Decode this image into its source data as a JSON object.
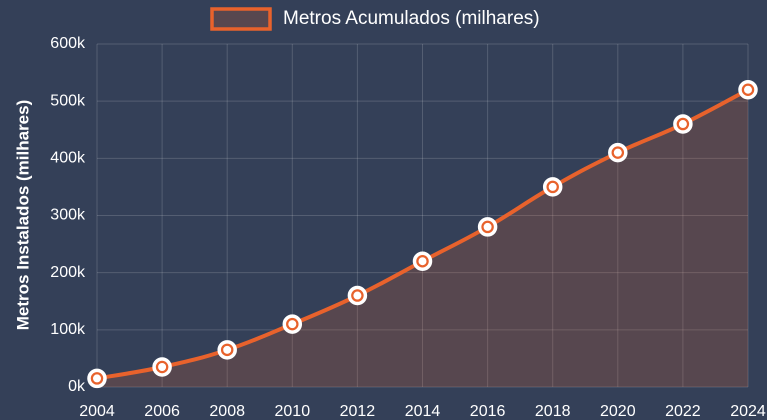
{
  "chart_data": {
    "type": "line",
    "ylabel": "Metros Instalados (milhares)",
    "x": [
      2004,
      2006,
      2008,
      2010,
      2012,
      2014,
      2016,
      2018,
      2020,
      2022,
      2024
    ],
    "series": [
      {
        "name": "Metros Acumulados (milhares)",
        "color": "#e8622c",
        "values": [
          15000,
          35000,
          65000,
          110000,
          160000,
          220000,
          280000,
          350000,
          410000,
          460000,
          520000
        ]
      }
    ],
    "xlim": [
      2004,
      2024
    ],
    "xticks": [
      2004,
      2006,
      2008,
      2010,
      2012,
      2014,
      2016,
      2018,
      2020,
      2022,
      2024
    ],
    "ylim": [
      0,
      600000
    ],
    "yticks": [
      {
        "value": 0,
        "label": "0k"
      },
      {
        "value": 100000,
        "label": "100k"
      },
      {
        "value": 200000,
        "label": "200k"
      },
      {
        "value": 300000,
        "label": "300k"
      },
      {
        "value": 400000,
        "label": "400k"
      },
      {
        "value": 500000,
        "label": "500k"
      },
      {
        "value": 600000,
        "label": "600k"
      }
    ],
    "grid": true,
    "fill": true,
    "legend": "top"
  }
}
